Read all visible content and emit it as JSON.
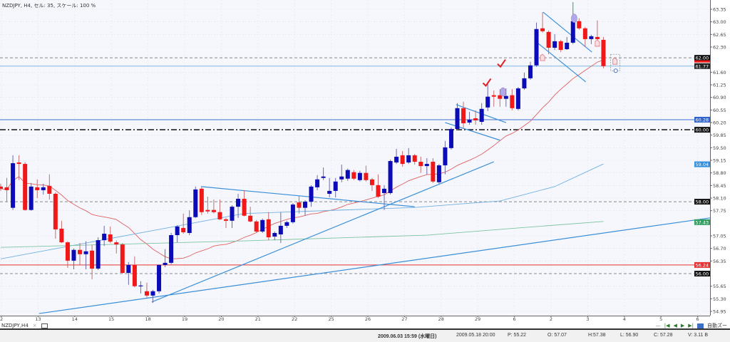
{
  "title": "NZDJPY, H4, セル: 35, スケール: 100 %",
  "tab": {
    "label": "NZDJPY,H4",
    "close": "×"
  },
  "nav": {
    "minus": "—",
    "first": "|◀",
    "prev": "◀",
    "next": "▶",
    "last": "▶|",
    "auto_zoom": "自動ズー"
  },
  "status": {
    "datetime": "2009.06.03 15:59 (水曜日)",
    "bar_time": "2009.05.18 20:00",
    "p": "P: 55.22",
    "o": "O: 57.07",
    "h": "H:57.38",
    "l": "L: 56.90",
    "c": "C: 57.28",
    "v": "V: 3.11 B"
  },
  "colors": {
    "bull": "#0b0bb8",
    "bear": "#f01818",
    "background": "#f6f7fc",
    "ma_fast": "#e06060",
    "ma_mid": "#6fb0e0",
    "ma_slow": "#7cc4a0",
    "trendline": "#3a8fd8"
  },
  "chart_data": {
    "type": "candlestick",
    "symbol": "NZDJPY",
    "timeframe": "H4",
    "ylim": [
      54.8,
      63.6
    ],
    "y_ticks": [
      "63.35",
      "63.00",
      "62.65",
      "62.30",
      "61.60",
      "61.25",
      "60.90",
      "60.55",
      "60.20",
      "59.85",
      "59.50",
      "59.15",
      "58.80",
      "58.45",
      "58.10",
      "57.75",
      "57.05",
      "56.70",
      "56.35",
      "55.65",
      "55.30",
      "54.95"
    ],
    "x_labels": [
      "2",
      "13",
      "14",
      "15",
      "18",
      "19",
      "20",
      "21",
      "22",
      "25",
      "26",
      "27",
      "28",
      "29",
      "6",
      "2",
      "3",
      "4",
      "5",
      "6"
    ],
    "candles": [
      [
        58.42,
        58.5,
        58.3,
        58.36
      ],
      [
        58.4,
        58.66,
        58.0,
        58.32
      ],
      [
        57.83,
        59.29,
        57.77,
        59.07
      ],
      [
        59.09,
        59.29,
        58.6,
        59.05
      ],
      [
        59.05,
        59.1,
        57.75,
        57.77
      ],
      [
        57.77,
        58.52,
        57.75,
        58.42
      ],
      [
        58.4,
        58.62,
        58.1,
        58.32
      ],
      [
        58.32,
        58.5,
        58.2,
        58.4
      ],
      [
        58.44,
        58.76,
        58.06,
        58.22
      ],
      [
        58.22,
        58.26,
        56.97,
        57.23
      ],
      [
        57.25,
        57.47,
        56.85,
        56.87
      ],
      [
        56.87,
        56.9,
        56.16,
        56.36
      ],
      [
        56.36,
        56.7,
        56.12,
        56.66
      ],
      [
        56.66,
        56.85,
        56.24,
        56.54
      ],
      [
        56.54,
        56.9,
        56.12,
        56.62
      ],
      [
        56.64,
        56.8,
        55.84,
        56.14
      ],
      [
        56.14,
        57.01,
        56.1,
        56.93
      ],
      [
        56.93,
        57.33,
        56.77,
        57.11
      ],
      [
        57.09,
        57.31,
        56.85,
        56.89
      ],
      [
        56.87,
        56.92,
        56.56,
        56.81
      ],
      [
        56.81,
        56.85,
        56.0,
        56.02
      ],
      [
        56.02,
        56.32,
        55.69,
        56.24
      ],
      [
        56.24,
        56.48,
        55.62,
        55.65
      ],
      [
        55.65,
        55.79,
        55.45,
        55.67
      ],
      [
        55.51,
        55.75,
        55.33,
        55.39
      ],
      [
        55.39,
        55.55,
        55.19,
        55.51
      ],
      [
        55.51,
        56.26,
        55.45,
        56.24
      ],
      [
        56.24,
        56.68,
        56.18,
        56.3
      ],
      [
        56.3,
        57.13,
        56.26,
        57.07
      ],
      [
        57.07,
        57.35,
        56.87,
        57.31
      ],
      [
        57.27,
        57.67,
        57.11,
        57.15
      ],
      [
        57.13,
        57.76,
        57.07,
        57.57
      ],
      [
        57.57,
        58.42,
        57.55,
        58.34
      ],
      [
        58.36,
        58.4,
        57.63,
        57.71
      ],
      [
        57.77,
        58.14,
        57.67,
        57.73
      ],
      [
        57.77,
        58.06,
        57.67,
        57.71
      ],
      [
        57.71,
        58.06,
        57.49,
        57.51
      ],
      [
        57.51,
        57.55,
        57.27,
        57.47
      ],
      [
        57.47,
        57.9,
        57.27,
        57.86
      ],
      [
        57.86,
        58.22,
        57.55,
        58.08
      ],
      [
        58.08,
        58.32,
        57.59,
        57.61
      ],
      [
        57.61,
        57.86,
        57.43,
        57.45
      ],
      [
        57.45,
        57.49,
        57.13,
        57.17
      ],
      [
        57.17,
        57.53,
        57.13,
        57.49
      ],
      [
        57.51,
        57.71,
        56.93,
        57.01
      ],
      [
        57.03,
        57.17,
        56.93,
        57.13
      ],
      [
        57.09,
        57.71,
        56.85,
        57.33
      ],
      [
        57.33,
        57.47,
        57.27,
        57.43
      ],
      [
        57.43,
        57.96,
        57.39,
        57.92
      ],
      [
        57.98,
        58.16,
        57.67,
        57.83
      ],
      [
        57.83,
        58.04,
        57.61,
        58.0
      ],
      [
        58.0,
        58.46,
        57.86,
        58.42
      ],
      [
        58.4,
        58.74,
        58.32,
        58.62
      ],
      [
        58.66,
        58.95,
        58.6,
        58.7
      ],
      [
        58.22,
        58.66,
        58.12,
        58.3
      ],
      [
        58.3,
        58.66,
        58.12,
        58.56
      ],
      [
        58.62,
        59.03,
        58.54,
        58.7
      ],
      [
        58.64,
        58.92,
        58.58,
        58.88
      ],
      [
        58.82,
        58.88,
        58.6,
        58.64
      ],
      [
        58.6,
        58.86,
        58.56,
        58.8
      ],
      [
        58.8,
        59.0,
        58.56,
        58.6
      ],
      [
        58.62,
        58.66,
        58.3,
        58.46
      ],
      [
        58.46,
        58.76,
        58.1,
        58.14
      ],
      [
        58.24,
        58.46,
        57.77,
        58.36
      ],
      [
        58.24,
        59.17,
        58.2,
        59.13
      ],
      [
        59.09,
        59.47,
        59.05,
        59.25
      ],
      [
        59.29,
        59.41,
        58.97,
        59.05
      ],
      [
        59.09,
        59.49,
        59.05,
        59.29
      ],
      [
        59.29,
        59.33,
        59.03,
        59.11
      ],
      [
        59.11,
        59.25,
        58.8,
        58.99
      ],
      [
        58.99,
        59.21,
        58.76,
        59.05
      ],
      [
        59.11,
        59.21,
        58.52,
        58.56
      ],
      [
        58.54,
        59.05,
        58.5,
        59.01
      ],
      [
        59.01,
        59.69,
        58.76,
        59.51
      ],
      [
        59.49,
        60.06,
        59.45,
        60.02
      ],
      [
        60.02,
        60.74,
        59.98,
        60.6
      ],
      [
        60.6,
        60.78,
        60.04,
        60.18
      ],
      [
        60.2,
        60.5,
        60.14,
        60.28
      ],
      [
        60.32,
        60.54,
        60.14,
        60.26
      ],
      [
        60.22,
        60.74,
        60.14,
        60.58
      ],
      [
        60.62,
        61.27,
        60.52,
        60.92
      ],
      [
        60.96,
        61.09,
        60.64,
        60.92
      ],
      [
        60.96,
        61.13,
        60.64,
        60.86
      ],
      [
        60.86,
        61.15,
        60.64,
        60.94
      ],
      [
        60.96,
        61.13,
        60.54,
        60.6
      ],
      [
        60.58,
        61.19,
        60.54,
        61.15
      ],
      [
        61.15,
        61.59,
        61.11,
        61.43
      ],
      [
        61.43,
        61.89,
        61.39,
        61.79
      ],
      [
        61.79,
        62.98,
        61.75,
        62.8
      ],
      [
        62.82,
        63.27,
        62.7,
        62.74
      ],
      [
        62.72,
        62.76,
        62.1,
        62.28
      ],
      [
        62.28,
        62.66,
        62.22,
        62.46
      ],
      [
        62.46,
        62.5,
        62.16,
        62.22
      ],
      [
        62.24,
        62.58,
        62.22,
        62.42
      ],
      [
        62.42,
        63.55,
        62.38,
        63.02
      ],
      [
        63.02,
        63.1,
        62.78,
        62.82
      ],
      [
        62.82,
        62.86,
        62.3,
        62.52
      ],
      [
        62.52,
        62.64,
        62.38,
        62.6
      ],
      [
        62.58,
        63.04,
        62.48,
        62.52
      ],
      [
        62.5,
        62.58,
        61.71,
        61.77
      ]
    ],
    "ma_mid": [
      [
        0,
        56.41
      ],
      [
        40,
        57.67
      ],
      [
        68,
        57.84
      ],
      [
        82,
        58.02
      ],
      [
        91,
        58.42
      ],
      [
        99,
        59.05
      ]
    ],
    "ma_slow": [
      [
        0,
        56.73
      ],
      [
        40,
        56.91
      ],
      [
        70,
        57.07
      ],
      [
        85,
        57.27
      ],
      [
        99,
        57.45
      ]
    ],
    "hlines": [
      {
        "price": 62.0,
        "label": "62.00",
        "style": "dash",
        "color": "#888888",
        "box": "#111111"
      },
      {
        "price": 61.77,
        "label": "61.77",
        "style": "solid",
        "color": "#7fb6e0",
        "box": "#222222"
      },
      {
        "price": 60.28,
        "label": "60.28",
        "style": "solid",
        "color": "#3a6fd8",
        "box": "#2f63d0"
      },
      {
        "price": 60.0,
        "label": "60.00",
        "style": "dashdot",
        "color": "#222222",
        "box": "#111111"
      },
      {
        "price": 58.0,
        "label": "58.00",
        "style": "dash",
        "color": "#888888",
        "box": "#111111"
      },
      {
        "price": 56.24,
        "label": "56.24",
        "style": "solid",
        "color": "#e83030",
        "box": "#e83030"
      },
      {
        "price": 56.0,
        "label": "56.00",
        "style": "dash",
        "color": "#888888",
        "box": "#111111"
      }
    ],
    "value_labels": [
      {
        "price": 59.04,
        "label": "59.04",
        "box": "#2f8fe0"
      },
      {
        "price": 57.43,
        "label": "57.43",
        "box": "#2f9f5f"
      }
    ],
    "trendlines": [
      [
        [
          6.3,
          54.89
        ],
        [
          116.5,
          57.55
        ]
      ],
      [
        [
          24.8,
          55.21
        ],
        [
          81,
          59.11
        ]
      ],
      [
        [
          32.9,
          58.42
        ],
        [
          68,
          57.86
        ]
      ],
      [
        [
          74.8,
          60.7
        ],
        [
          83,
          60.2
        ]
      ],
      [
        [
          73,
          60.2
        ],
        [
          82,
          59.71
        ]
      ],
      [
        [
          89.1,
          63.27
        ],
        [
          97.1,
          62.16
        ]
      ],
      [
        [
          87.7,
          62.48
        ],
        [
          96.1,
          61.33
        ]
      ]
    ],
    "checkmarks": [
      [
        79.8,
        61.3
      ],
      [
        82.2,
        61.83
      ]
    ],
    "markers": [
      [
        82.5,
        61.05
      ],
      [
        94.2,
        63.1
      ]
    ],
    "hand_markers": [
      [
        89,
        62.0
      ],
      [
        98,
        62.4
      ],
      [
        100.9,
        61.9
      ]
    ]
  }
}
